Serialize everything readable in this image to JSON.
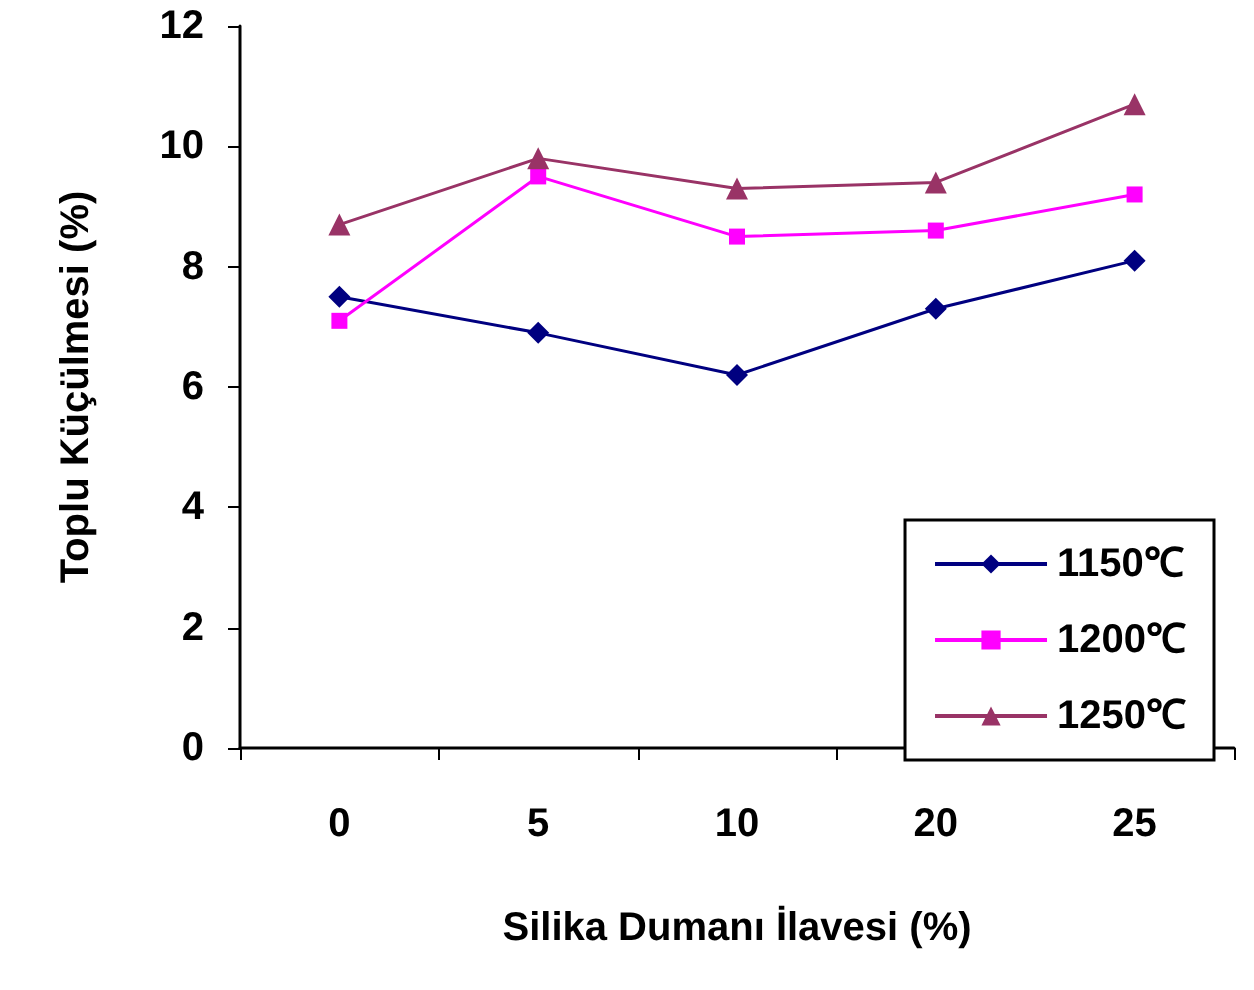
{
  "chart_data": {
    "type": "line",
    "xlabel": "Silika Dumanı İlavesi (%)",
    "ylabel": "Toplu Küçülmesi (%)",
    "categories": [
      "0",
      "5",
      "10",
      "20",
      "25"
    ],
    "series": [
      {
        "name": "1150℃",
        "color": "#000080",
        "marker": "diamond",
        "values": [
          7.5,
          6.9,
          6.2,
          7.3,
          8.1
        ]
      },
      {
        "name": "1200℃",
        "color": "#ff00ff",
        "marker": "square",
        "values": [
          7.1,
          9.5,
          8.5,
          8.6,
          9.2
        ]
      },
      {
        "name": "1250℃",
        "color": "#993366",
        "marker": "triangle",
        "values": [
          8.7,
          9.8,
          9.3,
          9.4,
          10.7
        ]
      }
    ],
    "ylim": [
      0,
      12
    ],
    "yticks": [
      0,
      2,
      4,
      6,
      8,
      10,
      12
    ],
    "grid": false,
    "legend": "bottom right"
  }
}
